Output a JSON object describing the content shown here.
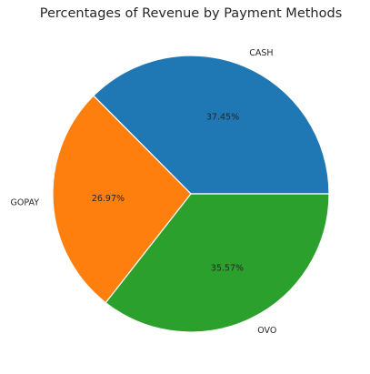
{
  "chart_data": {
    "type": "pie",
    "title": "Percentages of Revenue by Payment Methods",
    "categories": [
      "CASH",
      "GOPAY",
      "OVO"
    ],
    "values": [
      37.45,
      26.97,
      35.57
    ],
    "value_labels": [
      "37.45%",
      "26.97%",
      "35.57%"
    ],
    "colors": [
      "#1f77b4",
      "#ff7f0e",
      "#2ca02c"
    ],
    "start_angle_deg": 0,
    "direction": "counterclockwise",
    "legend": "none"
  }
}
